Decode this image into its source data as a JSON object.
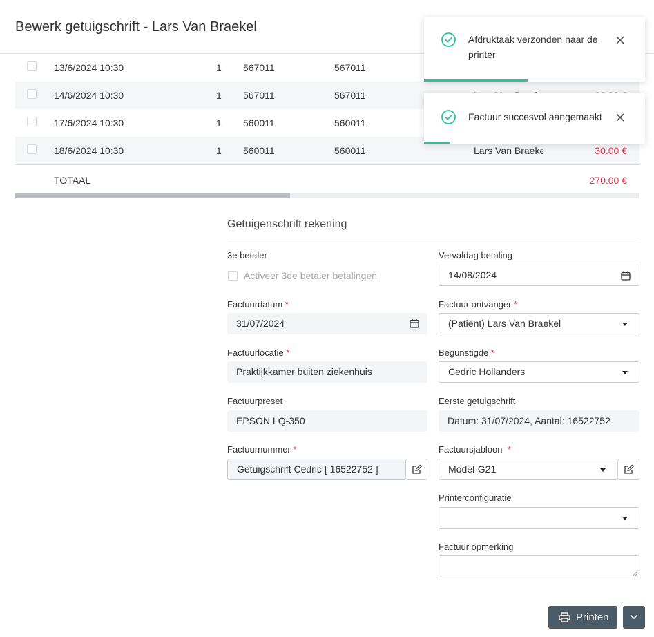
{
  "dialog": {
    "title": "Bewerk getuigschrift - Lars Van Braekel"
  },
  "table": {
    "rows": [
      {
        "date": "13/6/2024 10:30",
        "qty": "1",
        "code1": "567011",
        "code2": "567011",
        "name": "",
        "amount": ""
      },
      {
        "date": "14/6/2024 10:30",
        "qty": "1",
        "code1": "567011",
        "code2": "567011",
        "name": "Lars Van Braekel",
        "amount": "30.00 €"
      },
      {
        "date": "17/6/2024 10:30",
        "qty": "1",
        "code1": "560011",
        "code2": "560011",
        "name": "",
        "amount": ""
      },
      {
        "date": "18/6/2024 10:30",
        "qty": "1",
        "code1": "560011",
        "code2": "560011",
        "name": "Lars Van Braeke",
        "amount": "30.00 €"
      }
    ],
    "total_label": "TOTAAL",
    "total_amount": "270.00 €"
  },
  "form": {
    "section_title": "Getuigenschrift rekening",
    "third_payer": {
      "label": "3e betaler",
      "checkbox_label": "Activeer 3de betaler betalingen",
      "checked": false
    },
    "due_date": {
      "label": "Vervaldag betaling",
      "value": "14/08/2024"
    },
    "invoice_date": {
      "label": "Factuurdatum",
      "value": "31/07/2024"
    },
    "recipient": {
      "label": "Factuur ontvanger",
      "value": "(Patiënt) Lars Van Braekel"
    },
    "location": {
      "label": "Factuurlocatie",
      "value": "Praktijkkamer buiten ziekenhuis"
    },
    "beneficiary": {
      "label": "Begunstigde",
      "value": "Cedric Hollanders"
    },
    "preset": {
      "label": "Factuurpreset",
      "value": "EPSON LQ-350"
    },
    "first_certificate": {
      "label": "Eerste getuigschrift",
      "value": "Datum: 31/07/2024, Aantal: 16522752"
    },
    "invoice_number": {
      "label": "Factuurnummer",
      "value": "Getuigschrift Cedric [ 16522752 ]"
    },
    "template": {
      "label": "Factuursjabloon",
      "value": "Model-G21"
    },
    "printer_config": {
      "label": "Printerconfiguratie",
      "value": ""
    },
    "remark": {
      "label": "Factuur opmerking",
      "value": ""
    },
    "required_mark": "*"
  },
  "actions": {
    "print_label": "Printen"
  },
  "toasts": [
    {
      "message": "Afdruktaak verzonden naar de printer",
      "progress": 0.47
    },
    {
      "message": "Factuur succesvol aangemaakt",
      "progress": 0.12
    }
  ],
  "colors": {
    "accent_green": "#2cc19a",
    "amount_red": "#e8334f",
    "button_dark": "#4a5a67"
  }
}
